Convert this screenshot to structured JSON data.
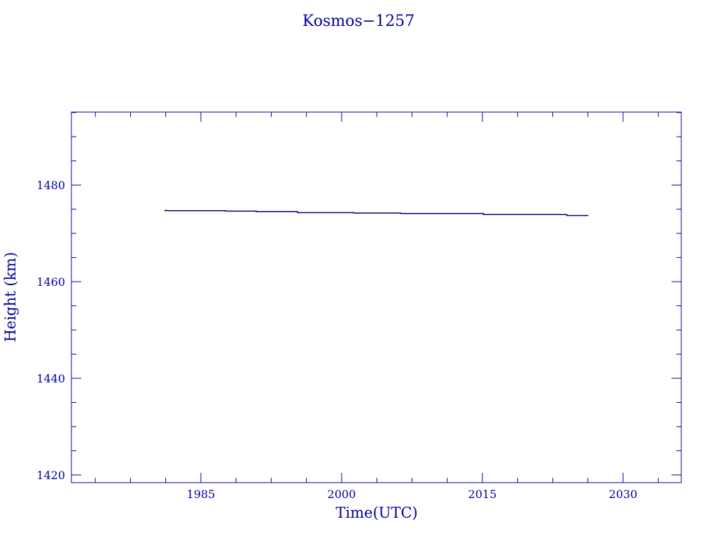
{
  "chart_data": {
    "type": "line",
    "title": "Kosmos−1257",
    "xlabel": "Time(UTC)",
    "ylabel": "Height (km)",
    "xlim": [
      1971.2,
      2036.2
    ],
    "ylim": [
      1418.4,
      1495.1
    ],
    "xticks": [
      1985,
      2000,
      2015,
      2030
    ],
    "xtick_labels": [
      "1985",
      "2000",
      "2015",
      "2030"
    ],
    "yticks": [
      1420,
      1440,
      1460,
      1480
    ],
    "ytick_labels": [
      "1420",
      "1440",
      "1460",
      "1480"
    ],
    "minor_subdivisions": 4,
    "grid": false,
    "color": "#0000a0",
    "series": [
      {
        "x": [
          1981.1,
          1981.3,
          1981.4,
          1987.6,
          1987.6,
          1990.9,
          1990.9,
          1995.3,
          1995.3,
          2001.3,
          2001.3,
          2006.3,
          2006.3,
          2015.1,
          2015.1,
          2024.0,
          2024.0,
          2026.3
        ],
        "y": [
          1474.6,
          1474.8,
          1474.7,
          1474.7,
          1474.6,
          1474.6,
          1474.5,
          1474.5,
          1474.3,
          1474.3,
          1474.2,
          1474.2,
          1474.1,
          1474.1,
          1473.9,
          1473.9,
          1473.7,
          1473.7
        ]
      }
    ]
  }
}
